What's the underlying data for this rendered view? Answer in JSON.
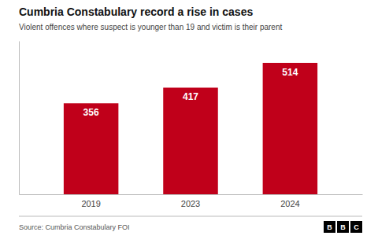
{
  "chart_data": {
    "type": "bar",
    "title": "Cumbria Constabulary record a rise in cases",
    "subtitle": "Violent offences where suspect is younger than 19 and victim is their parent",
    "categories": [
      "2019",
      "2023",
      "2024"
    ],
    "values": [
      356,
      417,
      514
    ],
    "color": "#c0001a",
    "ylim": [
      0,
      600
    ],
    "grid": false,
    "data_labels": true,
    "tick_labels": "x",
    "source": "Source: Cumbria Constabulary FOI",
    "logo": [
      "B",
      "B",
      "C"
    ]
  }
}
